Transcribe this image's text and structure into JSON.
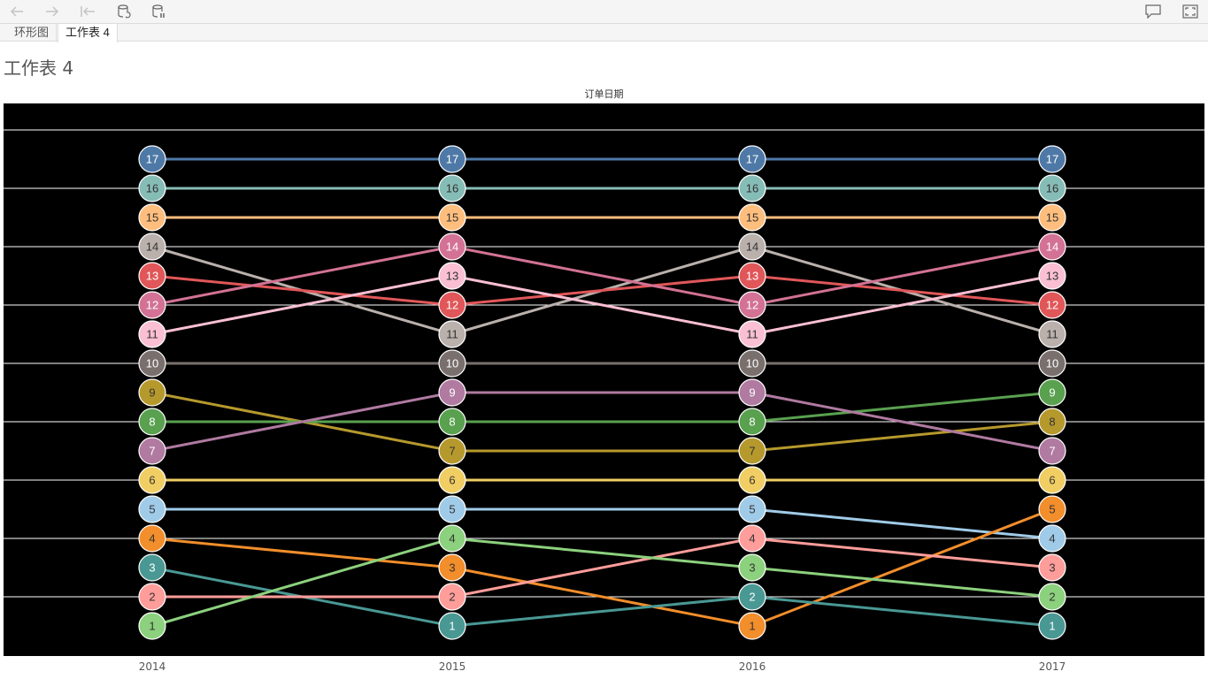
{
  "toolbar": {
    "buttons": [
      {
        "name": "undo-button",
        "icon": "arrow-left-icon"
      },
      {
        "name": "redo-button",
        "icon": "arrow-right-icon"
      },
      {
        "name": "revert-button",
        "icon": "revert-icon"
      },
      {
        "name": "refresh-data-button",
        "icon": "refresh-data-icon"
      },
      {
        "name": "pause-updates-button",
        "icon": "pause-data-icon"
      }
    ],
    "right_buttons": [
      {
        "name": "comment-button",
        "icon": "comment-icon"
      },
      {
        "name": "fullscreen-button",
        "icon": "fullscreen-icon"
      }
    ]
  },
  "tabs": [
    {
      "label": "环形图",
      "active": false
    },
    {
      "label": "工作表 4",
      "active": true
    }
  ],
  "sheet_title": "工作表 4",
  "chart_data": {
    "type": "line",
    "title": "订单日期",
    "background": "#000000",
    "x": [
      "2014",
      "2015",
      "2016",
      "2017"
    ],
    "ylim": [
      0,
      18
    ],
    "y_reversed": false,
    "grid": true,
    "series": [
      {
        "values": [
          17,
          17,
          17,
          17
        ],
        "color": "#4e79a7",
        "label_color": "#ffffff"
      },
      {
        "values": [
          16,
          16,
          16,
          16
        ],
        "color": "#86bcb6",
        "label_color": "#333333"
      },
      {
        "values": [
          15,
          15,
          15,
          15
        ],
        "color": "#ffbe7d",
        "label_color": "#333333"
      },
      {
        "values": [
          14,
          11,
          14,
          11
        ],
        "color": "#bab0ac",
        "label_color": "#333333"
      },
      {
        "values": [
          13,
          12,
          13,
          12
        ],
        "color": "#e15759",
        "label_color": "#ffffff"
      },
      {
        "values": [
          12,
          14,
          12,
          14
        ],
        "color": "#d37295",
        "label_color": "#ffffff"
      },
      {
        "values": [
          11,
          13,
          11,
          13
        ],
        "color": "#fabfd2",
        "label_color": "#333333"
      },
      {
        "values": [
          10,
          10,
          10,
          10
        ],
        "color": "#79706e",
        "label_color": "#ffffff"
      },
      {
        "values": [
          9,
          7,
          7,
          8
        ],
        "color": "#b6992d",
        "label_color": "#333333"
      },
      {
        "values": [
          8,
          8,
          8,
          9
        ],
        "color": "#59a14f",
        "label_color": "#ffffff"
      },
      {
        "values": [
          7,
          9,
          9,
          7
        ],
        "color": "#b07aa1",
        "label_color": "#ffffff"
      },
      {
        "values": [
          6,
          6,
          6,
          6
        ],
        "color": "#f1ce63",
        "label_color": "#333333"
      },
      {
        "values": [
          5,
          5,
          5,
          4
        ],
        "color": "#a0cbe8",
        "label_color": "#333333"
      },
      {
        "values": [
          4,
          3,
          1,
          5
        ],
        "color": "#f28e2b",
        "label_color": "#333333"
      },
      {
        "values": [
          3,
          1,
          2,
          1
        ],
        "color": "#499894",
        "label_color": "#ffffff"
      },
      {
        "values": [
          2,
          2,
          4,
          3
        ],
        "color": "#ff9d9a",
        "label_color": "#333333"
      },
      {
        "values": [
          1,
          4,
          3,
          2
        ],
        "color": "#8cd17d",
        "label_color": "#333333"
      }
    ]
  }
}
